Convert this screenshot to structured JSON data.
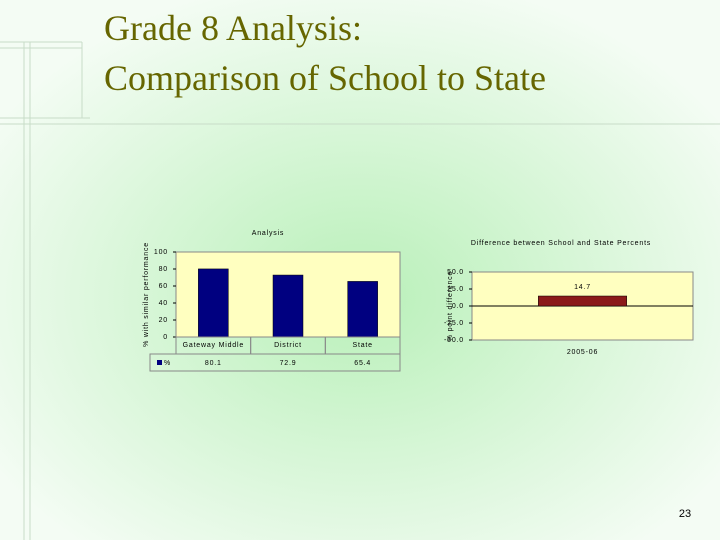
{
  "slide": {
    "title": [
      "Grade 8 Analysis:",
      "Comparison of School to State"
    ],
    "page_number": "23"
  },
  "chart_data": [
    {
      "type": "bar",
      "title": "Analysis",
      "ylabel": "% with similar performance",
      "categories": [
        "Gateway Middle",
        "District",
        "State"
      ],
      "series": [
        {
          "name": "%",
          "color": "#000080",
          "values": [
            80.1,
            72.9,
            65.4
          ]
        }
      ],
      "ylim": [
        0,
        100
      ],
      "yticks": [
        0,
        20,
        40,
        60,
        80,
        100
      ],
      "data_table": true
    },
    {
      "type": "bar",
      "title": "Difference between School and State Percents",
      "ylabel": "% point difference",
      "categories": [
        "2005-06"
      ],
      "values": [
        14.7
      ],
      "color": "#8b1a1a",
      "ylim": [
        -50,
        50
      ],
      "yticks": [
        {
          "value": -50,
          "label": "-50.0"
        },
        {
          "value": -25,
          "label": "-25.0"
        },
        {
          "value": 0,
          "label": "0.0"
        },
        {
          "value": 25,
          "label": "25.0"
        },
        {
          "value": 50,
          "label": "50.0"
        }
      ],
      "data_labels": true
    }
  ]
}
